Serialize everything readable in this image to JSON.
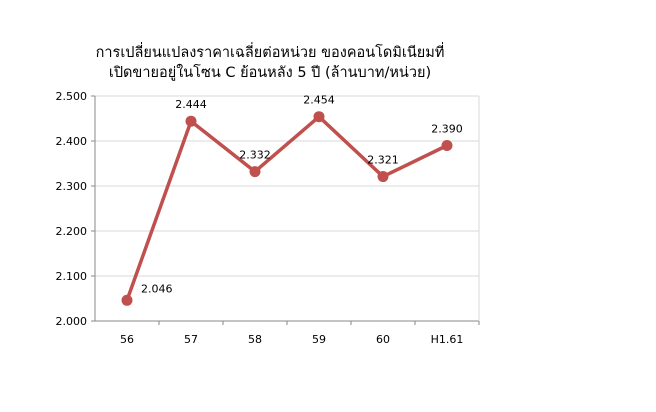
{
  "chart_data": {
    "type": "line",
    "title": [
      "การเปลี่ยนแปลงราคาเฉลี่ยต่อหน่วย ของคอนโดมิเนียมที่",
      "เปิดขายอยู่ในโซน C ย้อนหลัง 5 ปี (ล้านบาท/หน่วย)"
    ],
    "categories": [
      "56",
      "57",
      "58",
      "59",
      "60",
      "H1.61"
    ],
    "values": [
      2.046,
      2.444,
      2.332,
      2.454,
      2.321,
      2.39
    ],
    "data_labels": [
      "2.046",
      "2.444",
      "2.332",
      "2.454",
      "2.321",
      "2.390"
    ],
    "ylim": [
      2.0,
      2.5
    ],
    "yticks": [
      "2.000",
      "2.100",
      "2.200",
      "2.300",
      "2.400",
      "2.500"
    ],
    "grid": true,
    "color": "#C0504D",
    "legend": "none"
  }
}
